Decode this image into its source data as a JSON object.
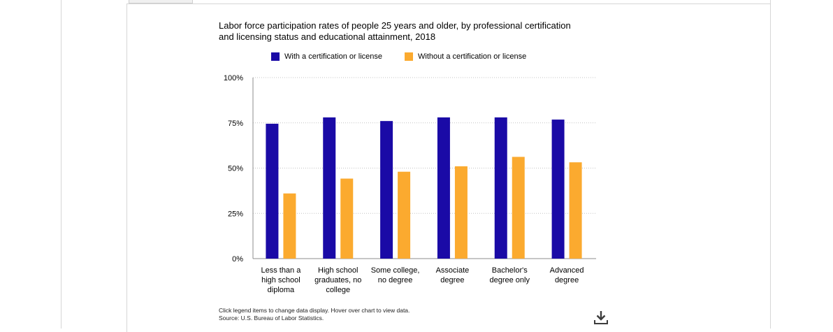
{
  "chart_data": {
    "type": "bar",
    "title": "Labor force participation rates of people 25 years and older, by professional certification and licensing status and educational attainment, 2018",
    "categories": [
      [
        "Less than a",
        "high school",
        "diploma"
      ],
      [
        "High school",
        "graduates, no",
        "college"
      ],
      [
        "Some college,",
        "no degree"
      ],
      [
        "Associate",
        "degree"
      ],
      [
        "Bachelor's",
        "degree only"
      ],
      [
        "Advanced",
        "degree"
      ]
    ],
    "series": [
      {
        "name": "With a certification or license",
        "color": "#1a0aa6",
        "values": [
          74.5,
          78,
          76,
          78,
          78,
          76.8
        ]
      },
      {
        "name": "Without a certification or license",
        "color": "#fbaa2f",
        "values": [
          36,
          44.2,
          48,
          51,
          56.2,
          53.2
        ]
      }
    ],
    "ylim": [
      0,
      100
    ],
    "yticks": [
      {
        "value": 0,
        "label": "0%"
      },
      {
        "value": 25,
        "label": "25%"
      },
      {
        "value": 50,
        "label": "50%"
      },
      {
        "value": 75,
        "label": "75%"
      },
      {
        "value": 100,
        "label": "100%"
      }
    ],
    "grid": true,
    "legend_position": "top"
  },
  "footnote": {
    "line1": "Click legend items to change data display. Hover over chart to view data.",
    "line2": "Source: U.S. Bureau of Labor Statistics."
  },
  "icons": {
    "download": "download-icon"
  }
}
